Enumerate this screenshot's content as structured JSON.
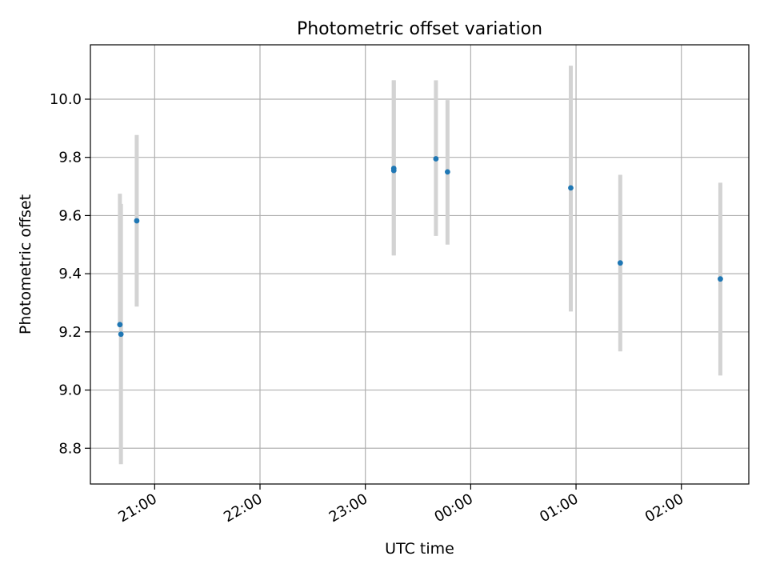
{
  "chart_data": {
    "type": "scatter",
    "title": "Photometric offset variation",
    "xlabel": "UTC time",
    "ylabel": "Photometric offset",
    "x_ticks": [
      "21:00",
      "22:00",
      "23:00",
      "00:00",
      "01:00",
      "02:00"
    ],
    "x_ticks_hours": [
      21,
      22,
      23,
      24,
      25,
      26
    ],
    "y_ticks": [
      "8.8",
      "9.0",
      "9.2",
      "9.4",
      "9.6",
      "9.8",
      "10.0"
    ],
    "y_ticks_values": [
      8.8,
      9.0,
      9.2,
      9.4,
      9.6,
      9.8,
      10.0
    ],
    "xlim_hours": [
      20.39,
      26.64
    ],
    "ylim": [
      8.677,
      10.187
    ],
    "grid": true,
    "marker_color": "#1f77b4",
    "errorbar_color": "#d3d3d3",
    "points": [
      {
        "t_hours": 20.67,
        "y": 9.225,
        "err_low": 9.225,
        "err_high": 9.675
      },
      {
        "t_hours": 20.68,
        "y": 9.192,
        "err_low": 8.745,
        "err_high": 9.64
      },
      {
        "t_hours": 20.83,
        "y": 9.582,
        "err_low": 9.287,
        "err_high": 9.877
      },
      {
        "t_hours": 23.27,
        "y": 9.755,
        "err_low": 9.463,
        "err_high": 10.065
      },
      {
        "t_hours": 23.27,
        "y": 9.762,
        "err_low": 9.463,
        "err_high": 10.065
      },
      {
        "t_hours": 23.67,
        "y": 9.795,
        "err_low": 9.53,
        "err_high": 10.065
      },
      {
        "t_hours": 23.78,
        "y": 9.75,
        "err_low": 9.5,
        "err_high": 9.997
      },
      {
        "t_hours": 24.95,
        "y": 9.695,
        "err_low": 9.27,
        "err_high": 10.115
      },
      {
        "t_hours": 25.42,
        "y": 9.437,
        "err_low": 9.133,
        "err_high": 9.74
      },
      {
        "t_hours": 26.37,
        "y": 9.382,
        "err_low": 9.05,
        "err_high": 9.713
      }
    ]
  }
}
